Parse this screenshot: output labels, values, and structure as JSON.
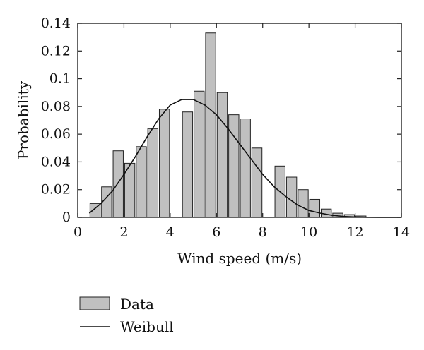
{
  "chart_data": {
    "type": "bar",
    "xlabel": "Wind speed (m/s)",
    "ylabel": "Probability",
    "xlim": [
      0,
      14
    ],
    "ylim": [
      0,
      0.14
    ],
    "xticks": [
      "0",
      "2",
      "4",
      "6",
      "8",
      "10",
      "12",
      "14"
    ],
    "yticks": [
      "0",
      "0.02",
      "0.04",
      "0.06",
      "0.08",
      "0.1",
      "0.12",
      "0.14"
    ],
    "grid": false,
    "legend_position": "bottom-left",
    "bar_width": 0.44,
    "series": [
      {
        "name": "Data",
        "kind": "histogram",
        "color": "#c0c0c0",
        "edge_color": "#222222",
        "x": [
          0.75,
          1.25,
          1.75,
          2.25,
          2.75,
          3.25,
          3.75,
          4.25,
          4.75,
          5.25,
          5.75,
          6.25,
          6.75,
          7.25,
          7.75,
          8.25,
          8.75,
          9.25,
          9.75,
          10.25,
          10.75,
          11.25,
          11.75,
          12.25
        ],
        "values": [
          0.01,
          0.022,
          0.048,
          0.039,
          0.051,
          0.064,
          0.078,
          0.0,
          0.076,
          0.091,
          0.133,
          0.09,
          0.074,
          0.071,
          0.05,
          0.0,
          0.037,
          0.029,
          0.02,
          0.013,
          0.006,
          0.003,
          0.002,
          0.001
        ]
      },
      {
        "name": "Weibull",
        "kind": "line",
        "color": "#111111",
        "x": [
          0.5,
          1,
          1.5,
          2,
          2.5,
          3,
          3.5,
          4,
          4.5,
          5,
          5.5,
          6,
          6.5,
          7,
          7.5,
          8,
          8.5,
          9,
          9.5,
          10,
          10.5,
          11,
          11.5,
          12,
          12.5,
          13,
          13.5,
          14
        ],
        "values": [
          0.003,
          0.01,
          0.019,
          0.031,
          0.044,
          0.058,
          0.071,
          0.081,
          0.085,
          0.085,
          0.081,
          0.074,
          0.064,
          0.053,
          0.042,
          0.031,
          0.022,
          0.015,
          0.009,
          0.005,
          0.003,
          0.0015,
          0.0007,
          0.0003,
          0.0001,
          0.0,
          0.0,
          0.0
        ]
      }
    ]
  }
}
